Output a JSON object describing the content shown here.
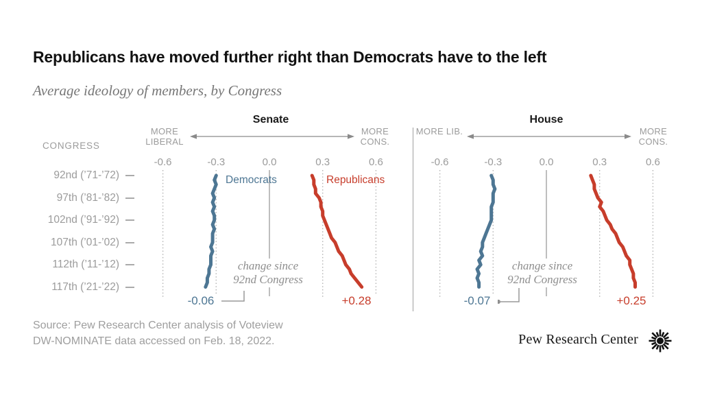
{
  "header": {
    "title": "Republicans have moved further right than Democrats have to the left",
    "subtitle": "Average ideology of members, by Congress"
  },
  "congress_axis": {
    "heading": "CONGRESS",
    "rows": [
      {
        "label": "92nd (’71-’72)"
      },
      {
        "label": "97th (’81-’82)"
      },
      {
        "label": "102nd (’91-’92)"
      },
      {
        "label": "107th (’01-’02)"
      },
      {
        "label": "112th (’11-’12)"
      },
      {
        "label": "117th (’21-’22)"
      }
    ]
  },
  "chart_data": [
    {
      "type": "line",
      "chamber": "Senate",
      "left_label": "MORE LIBERAL",
      "right_label": "MORE CONS.",
      "annotation": "change since 92nd Congress",
      "value_ticks": [
        -0.6,
        -0.3,
        0,
        0.3,
        0.6
      ],
      "tick_labels": [
        "-0.6",
        "-0.3",
        "0.0",
        "0.3",
        "0.6"
      ],
      "value_range": [
        -0.65,
        0.65
      ],
      "congresses": [
        92,
        93,
        94,
        95,
        96,
        97,
        98,
        99,
        100,
        101,
        102,
        103,
        104,
        105,
        106,
        107,
        108,
        109,
        110,
        111,
        112,
        113,
        114,
        115,
        116,
        117
      ],
      "series": [
        {
          "name": "Democrats",
          "color": "#4d7693",
          "change_label": "-0.06",
          "values": [
            -0.3,
            -0.31,
            -0.3,
            -0.31,
            -0.32,
            -0.31,
            -0.32,
            -0.31,
            -0.32,
            -0.31,
            -0.31,
            -0.32,
            -0.31,
            -0.32,
            -0.32,
            -0.32,
            -0.33,
            -0.32,
            -0.33,
            -0.33,
            -0.33,
            -0.34,
            -0.34,
            -0.35,
            -0.35,
            -0.36
          ]
        },
        {
          "name": "Republicans",
          "color": "#c73d2b",
          "change_label": "+0.28",
          "values": [
            0.24,
            0.25,
            0.25,
            0.26,
            0.26,
            0.28,
            0.29,
            0.29,
            0.3,
            0.3,
            0.31,
            0.32,
            0.33,
            0.34,
            0.35,
            0.37,
            0.38,
            0.39,
            0.41,
            0.42,
            0.43,
            0.45,
            0.46,
            0.48,
            0.5,
            0.52
          ]
        }
      ]
    },
    {
      "type": "line",
      "chamber": "House",
      "left_label": "MORE LIB.",
      "right_label": "MORE CONS.",
      "annotation": "change since 92nd Congress",
      "value_ticks": [
        -0.6,
        -0.3,
        0,
        0.3,
        0.6
      ],
      "tick_labels": [
        "-0.6",
        "-0.3",
        "0.0",
        "0.3",
        "0.6"
      ],
      "value_range": [
        -0.65,
        0.65
      ],
      "congresses": [
        92,
        93,
        94,
        95,
        96,
        97,
        98,
        99,
        100,
        101,
        102,
        103,
        104,
        105,
        106,
        107,
        108,
        109,
        110,
        111,
        112,
        113,
        114,
        115,
        116,
        117
      ],
      "series": [
        {
          "name": "Democrats",
          "color": "#4d7693",
          "change_label": "-0.07",
          "values": [
            -0.31,
            -0.3,
            -0.3,
            -0.29,
            -0.3,
            -0.3,
            -0.3,
            -0.31,
            -0.31,
            -0.31,
            -0.31,
            -0.32,
            -0.33,
            -0.34,
            -0.35,
            -0.36,
            -0.36,
            -0.37,
            -0.36,
            -0.38,
            -0.37,
            -0.39,
            -0.38,
            -0.39,
            -0.38,
            -0.38
          ]
        },
        {
          "name": "Republicans",
          "color": "#c73d2b",
          "change_label": "+0.25",
          "values": [
            0.25,
            0.26,
            0.27,
            0.27,
            0.28,
            0.29,
            0.31,
            0.3,
            0.32,
            0.33,
            0.34,
            0.36,
            0.37,
            0.39,
            0.4,
            0.41,
            0.43,
            0.44,
            0.45,
            0.47,
            0.47,
            0.48,
            0.49,
            0.49,
            0.5,
            0.5
          ]
        }
      ]
    }
  ],
  "footer": {
    "source_line1": "Source: Pew Research Center analysis of Voteview",
    "source_line2": "DW-NOMINATE data accessed on Feb. 18, 2022.",
    "logo_text": "Pew Research Center"
  },
  "colors": {
    "democrat_blue": "#4d7693",
    "republican_red": "#c73d2b",
    "axis_gray": "#9b9b9b",
    "grid_gray": "#b3b3b3"
  }
}
